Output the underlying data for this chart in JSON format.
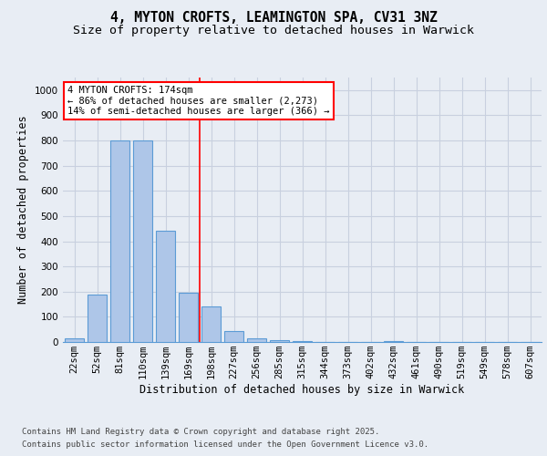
{
  "title_line1": "4, MYTON CROFTS, LEAMINGTON SPA, CV31 3NZ",
  "title_line2": "Size of property relative to detached houses in Warwick",
  "xlabel": "Distribution of detached houses by size in Warwick",
  "ylabel": "Number of detached properties",
  "categories": [
    "22sqm",
    "52sqm",
    "81sqm",
    "110sqm",
    "139sqm",
    "169sqm",
    "198sqm",
    "227sqm",
    "256sqm",
    "285sqm",
    "315sqm",
    "344sqm",
    "373sqm",
    "402sqm",
    "432sqm",
    "461sqm",
    "490sqm",
    "519sqm",
    "549sqm",
    "578sqm",
    "607sqm"
  ],
  "values": [
    15,
    190,
    800,
    800,
    440,
    195,
    140,
    45,
    15,
    8,
    5,
    0,
    0,
    0,
    5,
    0,
    0,
    0,
    0,
    0,
    0
  ],
  "bar_color": "#aec6e8",
  "bar_edge_color": "#5b9bd5",
  "vline_x_idx": 5.5,
  "vline_color": "red",
  "annotation_text": "4 MYTON CROFTS: 174sqm\n← 86% of detached houses are smaller (2,273)\n14% of semi-detached houses are larger (366) →",
  "annotation_box_color": "white",
  "annotation_box_edge_color": "red",
  "ylim": [
    0,
    1050
  ],
  "yticks": [
    0,
    100,
    200,
    300,
    400,
    500,
    600,
    700,
    800,
    900,
    1000
  ],
  "background_color": "#e8edf4",
  "plot_bg_color": "#e8edf4",
  "grid_color": "#c8d0df",
  "footer_line1": "Contains HM Land Registry data © Crown copyright and database right 2025.",
  "footer_line2": "Contains public sector information licensed under the Open Government Licence v3.0.",
  "title_fontsize": 10.5,
  "subtitle_fontsize": 9.5,
  "axis_label_fontsize": 8.5,
  "tick_fontsize": 7.5,
  "footer_fontsize": 6.5,
  "annot_fontsize": 7.5
}
